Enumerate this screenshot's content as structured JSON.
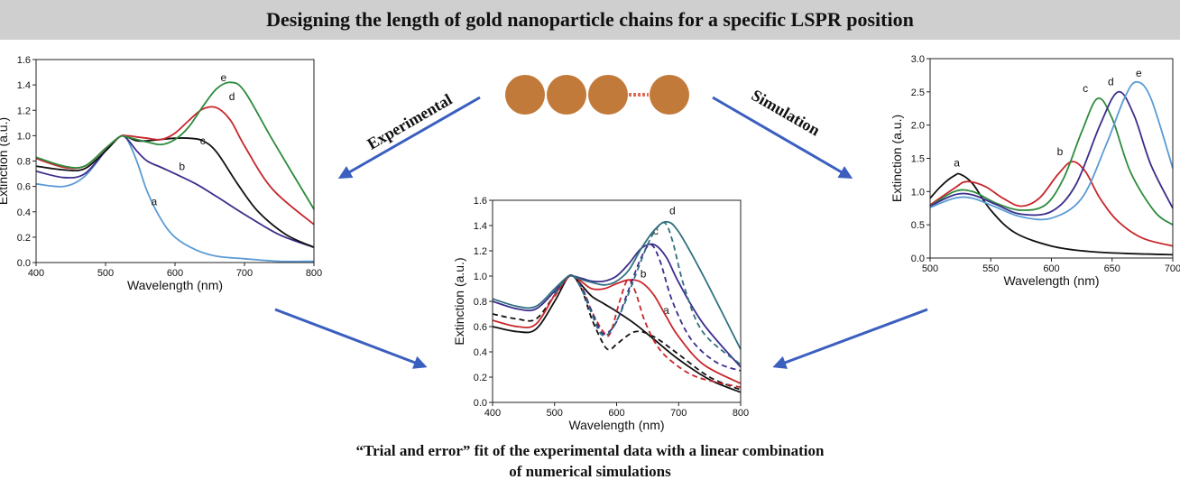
{
  "header": {
    "title": "Designing the length of  gold nanoparticle chains  for a specific LSPR position"
  },
  "labels": {
    "experimental": "Experimental",
    "simulation": "Simulation"
  },
  "caption": {
    "line1": "“Trial and error” fit of the experimental data with a linear combination",
    "line2": "of numerical simulations"
  },
  "colors": {
    "arrow": "#3a5fbf",
    "particle": "#c27a3a",
    "particle_link": "#e06b57"
  },
  "chart_data": [
    {
      "id": "experimental",
      "type": "line",
      "title": "",
      "xlabel": "Wavelength (nm)",
      "ylabel": "Extinction (a.u.)",
      "xlim": [
        400,
        800
      ],
      "ylim": [
        0,
        1.6
      ],
      "xticks": [
        400,
        500,
        600,
        700,
        800
      ],
      "yticks": [
        0.0,
        0.2,
        0.4,
        0.6,
        0.8,
        1.0,
        1.2,
        1.4,
        1.6
      ],
      "grid": false,
      "series": [
        {
          "name": "a",
          "color": "#5b9bd5",
          "label_at": [
            570,
            0.45
          ],
          "x": [
            400,
            440,
            470,
            500,
            520,
            530,
            545,
            560,
            580,
            600,
            630,
            660,
            700,
            750,
            800
          ],
          "y": [
            0.62,
            0.6,
            0.68,
            0.88,
            0.99,
            0.98,
            0.8,
            0.56,
            0.34,
            0.2,
            0.1,
            0.05,
            0.03,
            0.01,
            0.01
          ]
        },
        {
          "name": "b",
          "color": "#3b2d8c",
          "label_at": [
            610,
            0.73
          ],
          "x": [
            400,
            440,
            470,
            500,
            520,
            530,
            545,
            560,
            580,
            600,
            630,
            660,
            700,
            750,
            800
          ],
          "y": [
            0.72,
            0.67,
            0.7,
            0.88,
            0.99,
            0.98,
            0.88,
            0.8,
            0.75,
            0.7,
            0.62,
            0.52,
            0.38,
            0.22,
            0.12
          ]
        },
        {
          "name": "c",
          "color": "#111111",
          "label_at": [
            640,
            0.93
          ],
          "x": [
            400,
            440,
            470,
            500,
            520,
            530,
            545,
            560,
            580,
            600,
            620,
            640,
            660,
            690,
            720,
            760,
            800
          ],
          "y": [
            0.76,
            0.73,
            0.74,
            0.88,
            0.99,
            0.99,
            0.96,
            0.96,
            0.97,
            0.98,
            0.98,
            0.96,
            0.87,
            0.62,
            0.4,
            0.22,
            0.12
          ]
        },
        {
          "name": "d",
          "color": "#c8262b",
          "label_at": [
            682,
            1.28
          ],
          "x": [
            400,
            440,
            470,
            500,
            520,
            530,
            545,
            560,
            580,
            600,
            620,
            640,
            660,
            680,
            700,
            740,
            800
          ],
          "y": [
            0.82,
            0.75,
            0.76,
            0.9,
            0.99,
            1.0,
            0.99,
            0.98,
            0.97,
            1.02,
            1.12,
            1.21,
            1.22,
            1.12,
            0.92,
            0.58,
            0.3
          ]
        },
        {
          "name": "e",
          "color": "#2e8b3e",
          "label_at": [
            670,
            1.43
          ],
          "x": [
            400,
            440,
            470,
            500,
            520,
            530,
            545,
            560,
            580,
            600,
            620,
            640,
            660,
            680,
            700,
            740,
            800
          ],
          "y": [
            0.83,
            0.76,
            0.76,
            0.9,
            0.99,
            0.99,
            0.97,
            0.95,
            0.93,
            0.97,
            1.07,
            1.23,
            1.37,
            1.42,
            1.35,
            0.97,
            0.42
          ]
        }
      ]
    },
    {
      "id": "simulation",
      "type": "line",
      "title": "",
      "xlabel": "Wavelength (nm)",
      "ylabel": "Extinction (a.u.)",
      "xlim": [
        500,
        700
      ],
      "ylim": [
        0,
        3.0
      ],
      "xticks": [
        500,
        550,
        600,
        650,
        700
      ],
      "yticks": [
        0.0,
        0.5,
        1.0,
        1.5,
        2.0,
        2.5,
        3.0
      ],
      "grid": false,
      "series": [
        {
          "name": "a",
          "color": "#111111",
          "label_at": [
            522,
            1.38
          ],
          "x": [
            500,
            510,
            520,
            525,
            535,
            550,
            570,
            600,
            630,
            660,
            700
          ],
          "y": [
            0.9,
            1.1,
            1.24,
            1.26,
            1.12,
            0.72,
            0.38,
            0.18,
            0.1,
            0.07,
            0.05
          ]
        },
        {
          "name": "b",
          "color": "#c8262b",
          "label_at": [
            607,
            1.55
          ],
          "x": [
            500,
            520,
            530,
            545,
            560,
            575,
            590,
            605,
            617,
            628,
            640,
            655,
            675,
            700
          ],
          "y": [
            0.8,
            1.05,
            1.15,
            1.08,
            0.9,
            0.78,
            0.9,
            1.25,
            1.45,
            1.3,
            0.9,
            0.55,
            0.3,
            0.18
          ]
        },
        {
          "name": "c",
          "color": "#2e8b3e",
          "label_at": [
            628,
            2.5
          ],
          "x": [
            500,
            520,
            535,
            555,
            575,
            595,
            610,
            625,
            638,
            650,
            665,
            685,
            700
          ],
          "y": [
            0.78,
            1.0,
            1.0,
            0.82,
            0.72,
            0.8,
            1.2,
            1.9,
            2.4,
            2.1,
            1.3,
            0.7,
            0.5
          ]
        },
        {
          "name": "d",
          "color": "#3b2d8c",
          "label_at": [
            649,
            2.6
          ],
          "x": [
            500,
            520,
            535,
            555,
            575,
            600,
            620,
            640,
            655,
            668,
            682,
            700
          ],
          "y": [
            0.78,
            0.95,
            0.95,
            0.8,
            0.66,
            0.7,
            1.1,
            2.0,
            2.5,
            2.15,
            1.4,
            0.75
          ]
        },
        {
          "name": "e",
          "color": "#5b9bd5",
          "label_at": [
            672,
            2.73
          ],
          "x": [
            500,
            520,
            535,
            555,
            575,
            600,
            625,
            645,
            660,
            670,
            682,
            700
          ],
          "y": [
            0.76,
            0.9,
            0.9,
            0.76,
            0.62,
            0.6,
            0.9,
            1.7,
            2.4,
            2.65,
            2.4,
            1.35
          ]
        }
      ]
    },
    {
      "id": "fit",
      "type": "line",
      "title": "",
      "xlabel": "Wavelength (nm)",
      "ylabel": "Extinction (a.u.)",
      "xlim": [
        400,
        800
      ],
      "ylim": [
        0,
        1.6
      ],
      "xticks": [
        400,
        500,
        600,
        700,
        800
      ],
      "yticks": [
        0.0,
        0.2,
        0.4,
        0.6,
        0.8,
        1.0,
        1.2,
        1.4,
        1.6
      ],
      "grid": false,
      "series": [
        {
          "name": "a",
          "color": "#111111",
          "dashed": false,
          "label_at": [
            680,
            0.7
          ],
          "x": [
            400,
            440,
            470,
            500,
            520,
            530,
            545,
            560,
            580,
            600,
            630,
            660,
            700,
            750,
            800
          ],
          "y": [
            0.6,
            0.56,
            0.58,
            0.8,
            0.98,
            1.0,
            0.92,
            0.84,
            0.78,
            0.72,
            0.62,
            0.5,
            0.34,
            0.18,
            0.08
          ]
        },
        {
          "name": "",
          "color": "#111111",
          "dashed": true,
          "x": [
            400,
            440,
            470,
            500,
            520,
            530,
            545,
            560,
            580,
            590,
            600,
            630,
            660,
            700,
            750,
            800
          ],
          "y": [
            0.7,
            0.66,
            0.66,
            0.85,
            0.98,
            1.0,
            0.88,
            0.66,
            0.45,
            0.42,
            0.46,
            0.56,
            0.52,
            0.38,
            0.2,
            0.1
          ]
        },
        {
          "name": "b",
          "color": "#c8262b",
          "dashed": false,
          "label_at": [
            643,
            0.99
          ],
          "x": [
            400,
            440,
            470,
            500,
            520,
            530,
            545,
            560,
            580,
            600,
            620,
            640,
            660,
            680,
            700,
            740,
            800
          ],
          "y": [
            0.65,
            0.6,
            0.62,
            0.85,
            0.98,
            1.0,
            0.95,
            0.9,
            0.9,
            0.94,
            0.97,
            0.95,
            0.85,
            0.68,
            0.52,
            0.3,
            0.15
          ]
        },
        {
          "name": "",
          "color": "#c8262b",
          "dashed": true,
          "x": [
            500,
            520,
            530,
            545,
            560,
            580,
            590,
            605,
            618,
            630,
            645,
            665,
            690,
            730,
            800
          ],
          "y": [
            0.84,
            0.98,
            1.0,
            0.9,
            0.72,
            0.55,
            0.55,
            0.8,
            0.97,
            0.88,
            0.65,
            0.45,
            0.32,
            0.2,
            0.12
          ]
        },
        {
          "name": "c",
          "color": "#3b2d8c",
          "dashed": false,
          "label_at": [
            663,
            1.33
          ],
          "x": [
            400,
            440,
            470,
            500,
            520,
            530,
            545,
            560,
            580,
            600,
            620,
            640,
            660,
            680,
            700,
            740,
            800
          ],
          "y": [
            0.8,
            0.74,
            0.74,
            0.88,
            0.99,
            1.0,
            0.98,
            0.96,
            0.96,
            1.0,
            1.1,
            1.22,
            1.25,
            1.15,
            0.95,
            0.62,
            0.28
          ]
        },
        {
          "name": "",
          "color": "#3b2d8c",
          "dashed": true,
          "x": [
            500,
            520,
            530,
            545,
            560,
            575,
            585,
            600,
            620,
            640,
            655,
            670,
            690,
            720,
            760,
            800
          ],
          "y": [
            0.86,
            0.99,
            1.0,
            0.9,
            0.72,
            0.56,
            0.55,
            0.64,
            0.9,
            1.15,
            1.25,
            1.12,
            0.8,
            0.5,
            0.32,
            0.25
          ]
        },
        {
          "name": "d",
          "color": "#2f6f7f",
          "dashed": false,
          "label_at": [
            690,
            1.49
          ],
          "x": [
            400,
            440,
            470,
            500,
            520,
            530,
            545,
            560,
            580,
            600,
            620,
            640,
            660,
            680,
            700,
            740,
            800
          ],
          "y": [
            0.82,
            0.76,
            0.76,
            0.9,
            0.99,
            1.0,
            0.97,
            0.95,
            0.93,
            0.96,
            1.05,
            1.22,
            1.36,
            1.43,
            1.35,
            1.0,
            0.42
          ]
        },
        {
          "name": "",
          "color": "#2f6f7f",
          "dashed": true,
          "x": [
            500,
            520,
            530,
            545,
            560,
            575,
            590,
            610,
            630,
            650,
            665,
            678,
            690,
            710,
            740,
            800
          ],
          "y": [
            0.86,
            0.99,
            1.0,
            0.88,
            0.7,
            0.54,
            0.56,
            0.75,
            1.0,
            1.25,
            1.38,
            1.42,
            1.28,
            0.9,
            0.55,
            0.3
          ]
        }
      ]
    }
  ]
}
